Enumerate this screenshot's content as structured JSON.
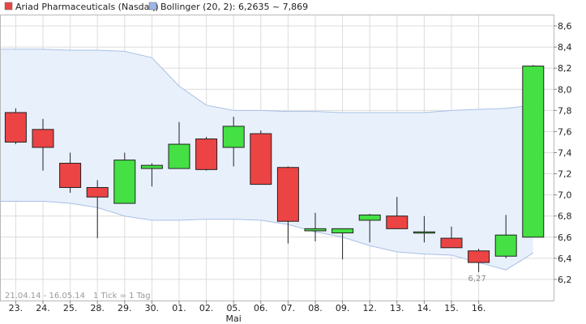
{
  "legend": {
    "instrument": "Ariad Pharmaceuticals (Nasdaq)",
    "indicator": "Bollinger (20, 2): 6,2635 ~ 7,869",
    "instrument_swatch_color": "#e84545",
    "indicator_swatch_color": "#9bb7e8"
  },
  "footer": {
    "range": "21.04.14 - 16.05.14",
    "tick_info": "1 Tick = 1 Tag"
  },
  "colors": {
    "up": "#44e044",
    "down": "#ec4444",
    "band_fill": "#e8f0fc",
    "band_line": "#a9c0e6",
    "grid": "#dcdcdc"
  },
  "chart_data": {
    "type": "candlestick",
    "title": "Ariad Pharmaceuticals (Nasdaq)",
    "ylim": [
      6.0,
      8.7
    ],
    "yticks": [
      "8,6",
      "8,4",
      "8,2",
      "8,0",
      "7,8",
      "7,6",
      "7,4",
      "7,2",
      "7,0",
      "6,8",
      "6,6",
      "6,4",
      "6,2"
    ],
    "yticks_values": [
      8.6,
      8.4,
      8.2,
      8.0,
      7.8,
      7.6,
      7.4,
      7.2,
      7.0,
      6.8,
      6.6,
      6.4,
      6.2
    ],
    "grid": true,
    "x_labels": [
      "23.",
      "24.",
      "25.",
      "28.",
      "29.",
      "30.",
      "01.",
      "02.",
      "05.",
      "06.",
      "07.",
      "08.",
      "09.",
      "12.",
      "13.",
      "14.",
      "15.",
      "16."
    ],
    "month_label": "Mai",
    "candles": [
      {
        "open": 7.78,
        "high": 7.82,
        "low": 7.48,
        "close": 7.5
      },
      {
        "open": 7.62,
        "high": 7.72,
        "low": 7.23,
        "close": 7.45
      },
      {
        "open": 7.3,
        "high": 7.4,
        "low": 7.02,
        "close": 7.07
      },
      {
        "open": 7.07,
        "high": 7.14,
        "low": 6.59,
        "close": 6.98
      },
      {
        "open": 6.92,
        "high": 7.4,
        "low": 6.92,
        "close": 7.33
      },
      {
        "open": 7.25,
        "high": 7.3,
        "low": 7.08,
        "close": 7.28
      },
      {
        "open": 7.25,
        "high": 7.69,
        "low": 7.25,
        "close": 7.48
      },
      {
        "open": 7.53,
        "high": 7.55,
        "low": 7.23,
        "close": 7.24
      },
      {
        "open": 7.45,
        "high": 7.74,
        "low": 7.27,
        "close": 7.65
      },
      {
        "open": 7.58,
        "high": 7.61,
        "low": 7.1,
        "close": 7.1
      },
      {
        "open": 7.26,
        "high": 7.27,
        "low": 6.54,
        "close": 6.75
      },
      {
        "open": 6.66,
        "high": 6.83,
        "low": 6.56,
        "close": 6.68
      },
      {
        "open": 6.64,
        "high": 6.68,
        "low": 6.39,
        "close": 6.68
      },
      {
        "open": 6.76,
        "high": 6.82,
        "low": 6.55,
        "close": 6.81
      },
      {
        "open": 6.8,
        "high": 6.98,
        "low": 6.68,
        "close": 6.68
      },
      {
        "open": 6.65,
        "high": 6.8,
        "low": 6.55,
        "close": 6.65
      },
      {
        "open": 6.59,
        "high": 6.7,
        "low": 6.5,
        "close": 6.5
      },
      {
        "open": 6.47,
        "high": 6.49,
        "low": 6.27,
        "close": 6.36
      },
      {
        "open": 6.42,
        "high": 6.81,
        "low": 6.4,
        "close": 6.62
      },
      {
        "open": 6.6,
        "high": 8.23,
        "low": 6.6,
        "close": 8.22
      }
    ],
    "bollinger": {
      "upper": [
        8.38,
        8.38,
        8.37,
        8.37,
        8.36,
        8.3,
        8.03,
        7.85,
        7.8,
        7.8,
        7.79,
        7.79,
        7.78,
        7.78,
        7.78,
        7.78,
        7.8,
        7.81,
        7.82,
        7.85
      ],
      "lower": [
        6.94,
        6.94,
        6.92,
        6.88,
        6.8,
        6.76,
        6.76,
        6.77,
        6.77,
        6.76,
        6.72,
        6.65,
        6.6,
        6.52,
        6.46,
        6.44,
        6.43,
        6.36,
        6.29,
        6.45
      ]
    },
    "annotation": {
      "text": "6,27",
      "value": 6.27,
      "index": 17
    }
  }
}
